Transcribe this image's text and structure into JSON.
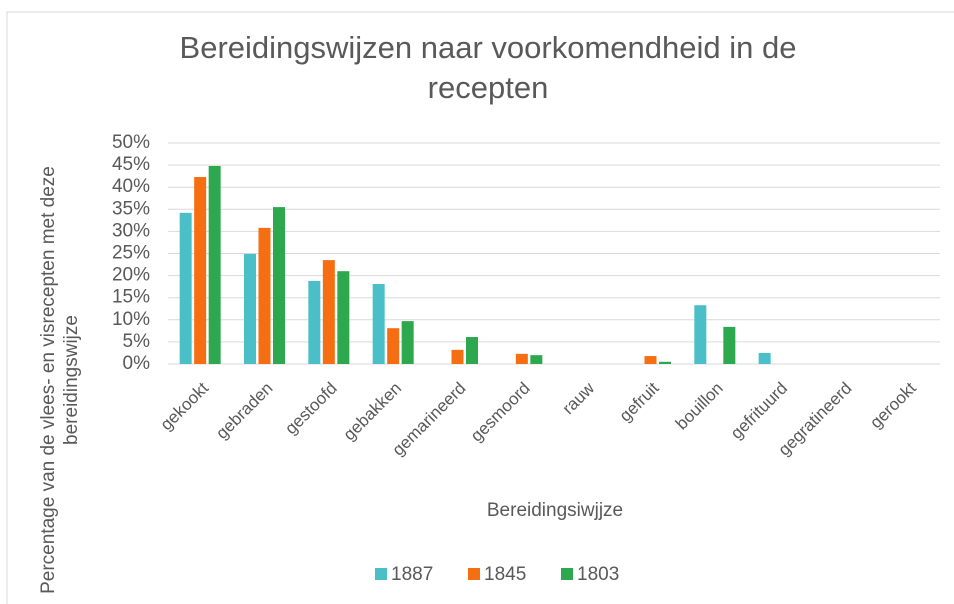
{
  "chart_data": {
    "type": "bar",
    "title": "Bereidingswijzen naar voorkomendheid in de recepten",
    "x_label": "Bereidingsiwjjze",
    "y_label": "Percentage van de vlees- en visrecepten met deze bereidingswijze",
    "categories": [
      "gekookt",
      "gebraden",
      "gestoofd",
      "gebakken",
      "gemarineerd",
      "gesmoord",
      "rauw",
      "gefruit",
      "bouillon",
      "gefrituurd",
      "gegratineerd",
      "gerookt"
    ],
    "series": [
      {
        "name": "1887",
        "color": "#4bbfc8",
        "values": [
          34.2,
          24.9,
          18.8,
          18.1,
          0,
          0,
          0,
          0,
          13.3,
          2.5,
          0,
          0
        ]
      },
      {
        "name": "1845",
        "color": "#f56e12",
        "values": [
          42.3,
          30.8,
          23.5,
          8.1,
          3.2,
          2.3,
          0,
          1.8,
          0,
          0,
          0,
          0
        ]
      },
      {
        "name": "1803",
        "color": "#2ea84f",
        "values": [
          44.8,
          35.5,
          21.0,
          9.7,
          6.1,
          2.0,
          0,
          0.5,
          8.4,
          0,
          0,
          0
        ]
      }
    ],
    "ylim": [
      0,
      50
    ],
    "yticks": [
      {
        "value": 0,
        "label": "0%"
      },
      {
        "value": 5,
        "label": "5%"
      },
      {
        "value": 10,
        "label": "10%"
      },
      {
        "value": 15,
        "label": "15%"
      },
      {
        "value": 20,
        "label": "20%"
      },
      {
        "value": 25,
        "label": "25%"
      },
      {
        "value": 30,
        "label": "30%"
      },
      {
        "value": 35,
        "label": "35%"
      },
      {
        "value": 40,
        "label": "40%"
      },
      {
        "value": 45,
        "label": "45%"
      },
      {
        "value": 50,
        "label": "50%"
      }
    ],
    "grid": true,
    "legend": "bottom"
  }
}
